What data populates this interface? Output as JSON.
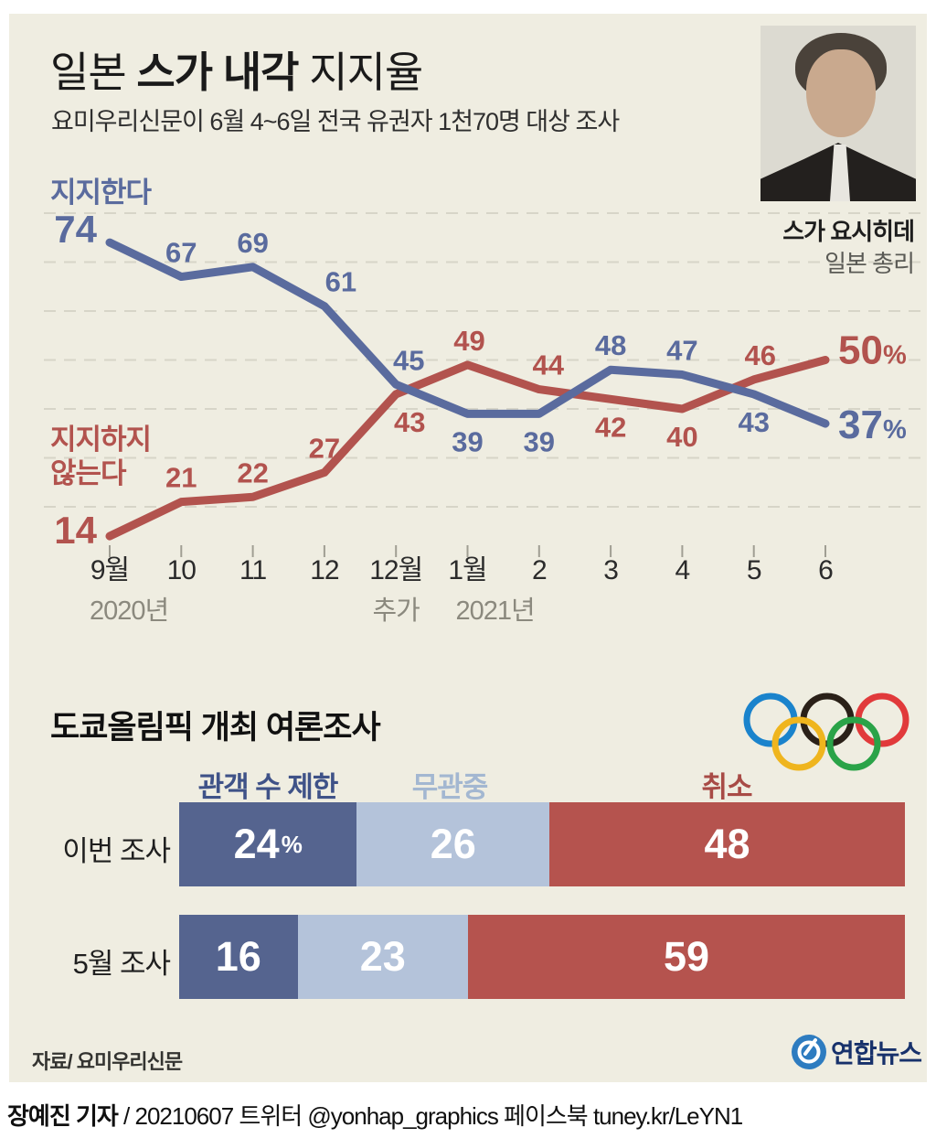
{
  "header": {
    "title_part1": "일본 ",
    "title_part2": "스가 내각",
    "title_part3": " 지지율",
    "subtitle": "요미우리신문이 6월 4~6일 전국 유권자 1천70명 대상 조사"
  },
  "photo": {
    "caption_name": "스가 요시히데",
    "caption_role": "일본 총리"
  },
  "chart_data": [
    {
      "type": "line",
      "title": "일본 스가 내각 지지율",
      "unit": "%",
      "x_labels": [
        "9월",
        "10",
        "11",
        "12",
        "12월",
        "1월",
        "2",
        "3",
        "4",
        "5",
        "6"
      ],
      "x_sublabels": [
        {
          "text": "2020년",
          "x_index": 0,
          "x_offset": -22,
          "anchor": "start"
        },
        {
          "text": "추가",
          "x_index": 4,
          "x_offset": 0,
          "anchor": "middle"
        },
        {
          "text": "2021년",
          "x_index": 5,
          "x_offset": -13,
          "anchor": "start"
        }
      ],
      "ylim": [
        10,
        85
      ],
      "grid_values": [
        80,
        70,
        60,
        50,
        40,
        30,
        20
      ],
      "grid_on": true,
      "colors": {
        "grid": "#d7d5c8",
        "tick": "#a09e93",
        "month_label": "#2b2b2b",
        "sub_label": "#8b897e"
      },
      "series": [
        {
          "name": "지지한다",
          "color": "#5a6b9e",
          "values": [
            74,
            67,
            69,
            61,
            45,
            39,
            39,
            48,
            47,
            43,
            37
          ],
          "label_pos": [
            "start",
            "above",
            "above",
            "above",
            "above",
            "below",
            "below",
            "above",
            "above",
            "below",
            "end"
          ],
          "label_dx": [
            0,
            0,
            0,
            18,
            14,
            0,
            0,
            0,
            0,
            0,
            0
          ],
          "start_dy": 0,
          "end_dy": 16
        },
        {
          "name": "지지하지 않는다",
          "color": "#b2534e",
          "values": [
            14,
            21,
            22,
            27,
            43,
            49,
            44,
            42,
            40,
            46,
            50
          ],
          "label_pos": [
            "start",
            "above",
            "above",
            "above",
            "below",
            "above",
            "above",
            "below",
            "below",
            "above",
            "end"
          ],
          "label_dx": [
            0,
            0,
            0,
            0,
            15,
            2,
            10,
            0,
            0,
            7,
            0
          ],
          "start_dy": 8,
          "end_dy": 4
        }
      ]
    },
    {
      "type": "bar",
      "stacked": true,
      "orientation": "horizontal",
      "title": "도쿄올림픽 개최 여론조사",
      "unit": "%",
      "categories": [
        "이번 조사",
        "5월 조사"
      ],
      "series": [
        {
          "name": "관객 수 제한",
          "color": "#55648f",
          "label_color": "#3f5288",
          "values": [
            24,
            16
          ]
        },
        {
          "name": "무관중",
          "color": "#b4c3da",
          "label_color": "#a3b7d1",
          "values": [
            26,
            23
          ]
        },
        {
          "name": "취소",
          "color": "#b5534e",
          "label_color": "#a84b46",
          "values": [
            48,
            59
          ]
        }
      ],
      "legend_centers_x": [
        283,
        482,
        785
      ],
      "first_value_unit": "%"
    }
  ],
  "olympic_rings_colors": [
    "#1a83cc",
    "#2a2018",
    "#e13a3b",
    "#efb51e",
    "#2aa348"
  ],
  "source": "자료/ 요미우리신문",
  "logo": {
    "text": "연합뉴스",
    "circle_color": "#2e7cc0",
    "text_color": "#17316b"
  },
  "footer": {
    "byline_name": "장예진 기자",
    "byline_rest": " / 20210607 트위터 @yonhap_graphics  페이스북 tuney.kr/LeYN1"
  }
}
